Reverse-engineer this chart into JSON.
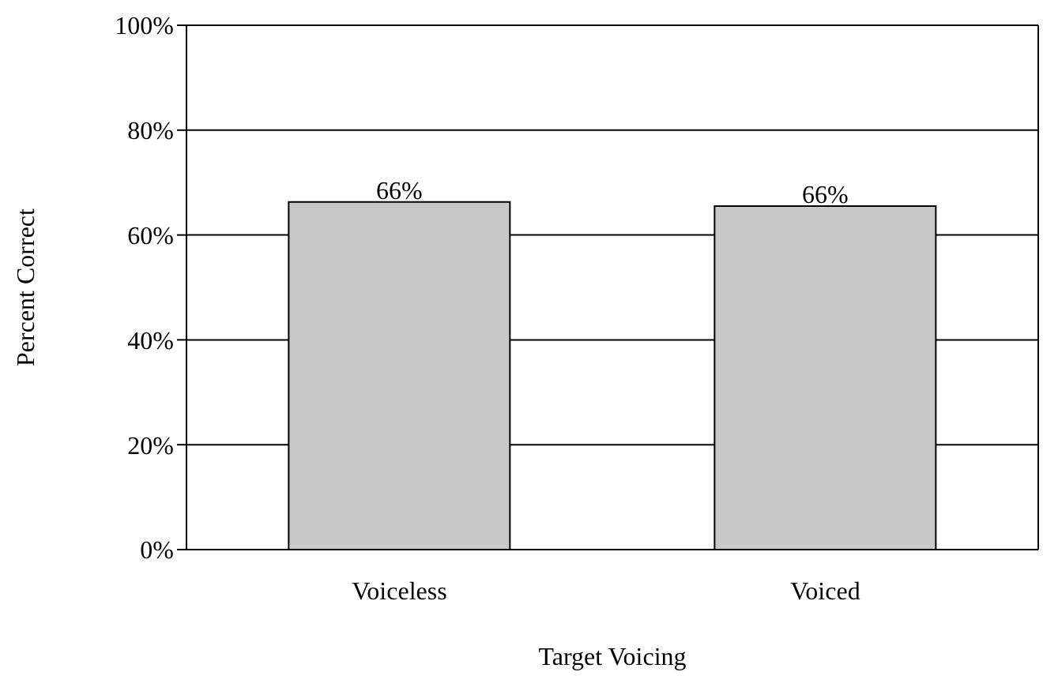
{
  "chart_data": {
    "type": "bar",
    "xlabel": "Target Voicing",
    "ylabel": "Percent Correct",
    "categories": [
      "Voiceless",
      "Voiced"
    ],
    "values": [
      66.3,
      65.5
    ],
    "value_labels": [
      "66%",
      "66%"
    ],
    "color": "#c8c8c8",
    "ylim": [
      0,
      100
    ],
    "yticks": [
      {
        "value": 0,
        "label": "0%"
      },
      {
        "value": 20,
        "label": "20%"
      },
      {
        "value": 40,
        "label": "40%"
      },
      {
        "value": 60,
        "label": "60%"
      },
      {
        "value": 80,
        "label": "80%"
      },
      {
        "value": 100,
        "label": "100%"
      }
    ],
    "grid": "y"
  }
}
